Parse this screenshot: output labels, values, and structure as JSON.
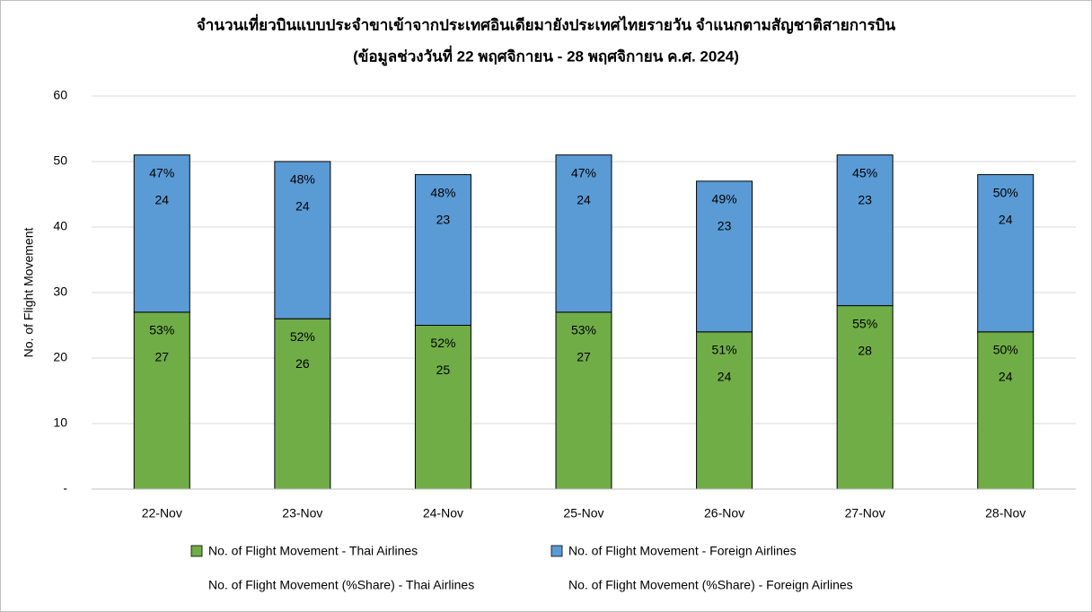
{
  "chart_data": {
    "type": "bar",
    "stacked": true,
    "title": "จำนวนเที่ยวบินแบบประจำขาเข้าจากประเทศอินเดียมายังประเทศไทยรายวัน  จำแนกตามสัญชาติสายการบิน",
    "subtitle": "(ข้อมูลช่วงวันที่ 22 พฤศจิกายน - 28 พฤศจิกายน ค.ศ. 2024)",
    "y_label": "No. of Flight Movement",
    "categories": [
      "22-Nov",
      "23-Nov",
      "24-Nov",
      "25-Nov",
      "26-Nov",
      "27-Nov",
      "28-Nov"
    ],
    "series": [
      {
        "name": "No. of Flight Movement - Thai Airlines",
        "color": "#70ad47",
        "values": [
          27,
          26,
          25,
          27,
          24,
          28,
          24
        ]
      },
      {
        "name": "No. of Flight Movement - Foreign Airlines",
        "color": "#5b9bd5",
        "values": [
          24,
          24,
          23,
          24,
          23,
          23,
          24
        ]
      }
    ],
    "share_series": [
      {
        "name": "No. of Flight Movement (%Share) - Thai Airlines",
        "values": [
          53,
          52,
          52,
          53,
          51,
          55,
          50
        ],
        "value_labels": [
          "53%",
          "52%",
          "52%",
          "53%",
          "51%",
          "55%",
          "50%"
        ]
      },
      {
        "name": "No. of Flight Movement (%Share) - Foreign Airlines",
        "values": [
          47,
          48,
          48,
          47,
          49,
          45,
          50
        ],
        "value_labels": [
          "47%",
          "48%",
          "48%",
          "47%",
          "49%",
          "45%",
          "50%"
        ]
      }
    ],
    "ylim": [
      0,
      60
    ],
    "yticks": [
      {
        "value": 0,
        "label": "-"
      },
      10,
      20,
      30,
      40,
      50,
      60
    ],
    "grid": true
  }
}
